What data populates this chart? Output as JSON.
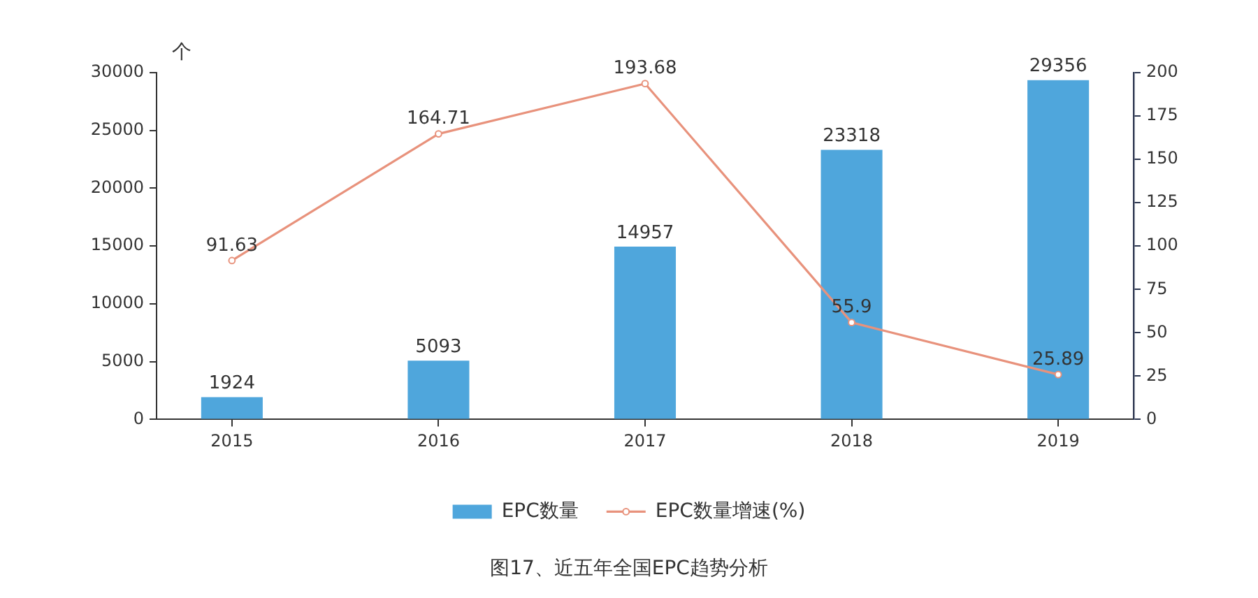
{
  "chart_data": {
    "type": "bar",
    "title": "图17、近五年全国EPC趋势分析",
    "ylabel": "个",
    "categories": [
      "2015",
      "2016",
      "2017",
      "2018",
      "2019"
    ],
    "series": [
      {
        "name": "EPC数量",
        "color": "#4fa6dc",
        "values": [
          1924,
          5093,
          14957,
          23318,
          29356
        ]
      },
      {
        "name": "EPC数量增速(%)",
        "type": "line",
        "axis": "y2",
        "color": "#e8927c",
        "values": [
          91.63,
          164.71,
          193.68,
          55.9,
          25.89
        ]
      }
    ],
    "ylim": [
      0,
      30000
    ],
    "yticks": [
      0,
      5000,
      10000,
      15000,
      20000,
      25000,
      30000
    ],
    "y2lim": [
      0,
      200
    ],
    "y2ticks": [
      0,
      25,
      50,
      75,
      100,
      125,
      150,
      175,
      200
    ],
    "marker": "circle",
    "data_labels": true,
    "legend": "bottom",
    "grid": false
  }
}
